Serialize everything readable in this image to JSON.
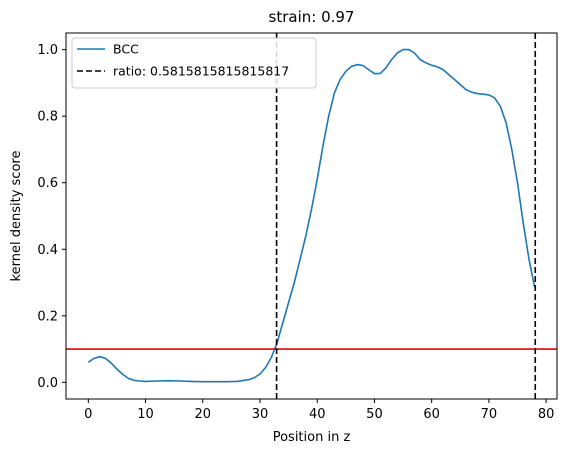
{
  "chart_data": {
    "type": "line",
    "title": "strain: 0.97",
    "xlabel": "Position in z",
    "ylabel": "kernel density score",
    "xlim": [
      -3.9,
      81.9
    ],
    "ylim": [
      -0.05,
      1.05
    ],
    "xticks": [
      0,
      10,
      20,
      30,
      40,
      50,
      60,
      70,
      80
    ],
    "yticks": [
      0.0,
      0.2,
      0.4,
      0.6,
      0.8,
      1.0
    ],
    "grid": false,
    "legend_position": "upper left",
    "series": [
      {
        "name": "BCC",
        "color": "#1f77b4",
        "x": [
          0,
          1,
          2,
          3,
          4,
          5,
          6,
          7,
          8,
          9,
          10,
          12,
          14,
          16,
          18,
          20,
          22,
          24,
          26,
          28,
          29,
          30,
          31,
          32,
          33,
          34,
          35,
          36,
          37,
          38,
          39,
          40,
          41,
          42,
          43,
          44,
          45,
          46,
          47,
          48,
          49,
          50,
          51,
          52,
          53,
          54,
          55,
          56,
          57,
          58,
          59,
          60,
          61,
          62,
          63,
          64,
          65,
          66,
          67,
          68,
          69,
          70,
          71,
          72,
          73,
          74,
          75,
          76,
          77,
          78
        ],
        "y": [
          0.06,
          0.072,
          0.077,
          0.072,
          0.058,
          0.04,
          0.024,
          0.012,
          0.006,
          0.004,
          0.003,
          0.004,
          0.005,
          0.004,
          0.003,
          0.002,
          0.002,
          0.002,
          0.003,
          0.008,
          0.014,
          0.025,
          0.045,
          0.075,
          0.12,
          0.18,
          0.24,
          0.3,
          0.37,
          0.44,
          0.52,
          0.61,
          0.71,
          0.8,
          0.87,
          0.91,
          0.935,
          0.95,
          0.955,
          0.952,
          0.94,
          0.928,
          0.928,
          0.945,
          0.97,
          0.99,
          1.0,
          1.0,
          0.99,
          0.97,
          0.96,
          0.953,
          0.948,
          0.94,
          0.925,
          0.91,
          0.895,
          0.88,
          0.872,
          0.868,
          0.866,
          0.864,
          0.855,
          0.83,
          0.78,
          0.7,
          0.6,
          0.48,
          0.37,
          0.285
        ]
      }
    ],
    "vlines": [
      {
        "name": "ratio: 0.5815815815815817",
        "x": [
          32.9,
          78.1
        ],
        "color": "#000000",
        "style": "dashed"
      }
    ],
    "hlines": [
      {
        "y": 0.1,
        "color": "#e8000b",
        "style": "solid"
      }
    ]
  }
}
